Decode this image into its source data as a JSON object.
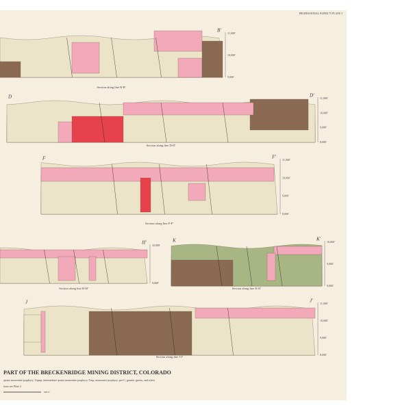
{
  "header": {
    "plate_label": "PROFESSIONAL PAPER 75 PLATE 3"
  },
  "sections": [
    {
      "caption": "Section along line B-B'",
      "left_label": "",
      "right_label": "B'",
      "axis_labels": [
        "11,000'",
        "10,000'",
        "9,000'"
      ]
    },
    {
      "caption": "Section along line D-D'",
      "left_label": "D",
      "right_label": "D'",
      "axis_labels": [
        "11,000'",
        "10,000'",
        "9,000'",
        "8,000'"
      ]
    },
    {
      "caption": "Section along line F-F'",
      "left_label": "F",
      "right_label": "F'",
      "axis_labels": [
        "11,000'",
        "10,000'",
        "9,000'",
        "8,000'"
      ]
    },
    {
      "caption": "Section along line H-H'",
      "left_label": "",
      "right_label": "H'",
      "axis_labels": [
        "10,000'",
        "9,000'"
      ]
    },
    {
      "caption": "Section along line K-K'",
      "left_label": "K",
      "right_label": "K'",
      "axis_labels": [
        "10,000'",
        "9,000'",
        "8,000'"
      ]
    },
    {
      "caption": "Section along line J-J'",
      "left_label": "J",
      "right_label": "J'",
      "axis_labels": [
        "11,000'",
        "10,000'",
        "9,000'",
        "8,000'"
      ]
    }
  ],
  "footer": {
    "title": "PART OF THE BRECKENRIDGE MINING DISTRICT, COLORADO",
    "legend": "quartz monzonite porphyry; Tiqmp, intermediate quartz monzonite porphyry; Tmp, monzonite porphyry; pre-C, granite, gneiss, and schist",
    "note": "tions see Plate 2",
    "scale": "MILE"
  }
}
